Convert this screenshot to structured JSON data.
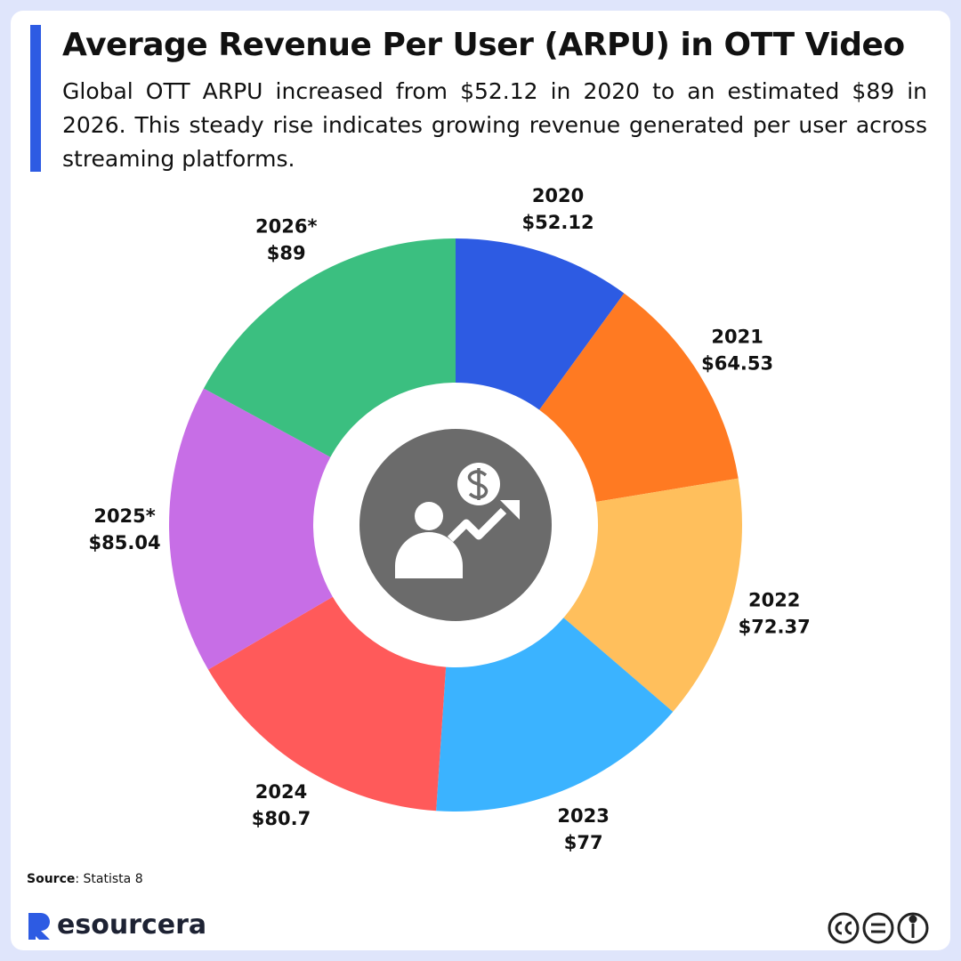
{
  "chart_data": {
    "type": "donut",
    "title": "Average Revenue Per User (ARPU) in OTT Video",
    "subtitle": "Global OTT ARPU increased from $52.12 in 2020 to an estimated $89 in 2026. This steady rise indicates growing revenue generated per user across streaming platforms.",
    "categories": [
      "2020",
      "2021",
      "2022",
      "2023",
      "2024",
      "2025*",
      "2026*"
    ],
    "values": [
      52.12,
      64.53,
      72.37,
      77,
      80.7,
      85.04,
      89
    ],
    "value_labels": [
      "$52.12",
      "$64.53",
      "$72.37",
      "$77",
      "$80.7",
      "$85.04",
      "$89"
    ],
    "colors": [
      "#2d5be3",
      "#ff7a22",
      "#ffbf5c",
      "#3bb3ff",
      "#ff5a5a",
      "#c76ee6",
      "#3bbf80"
    ]
  },
  "source": {
    "label": "Source",
    "text": ": Statista 8"
  },
  "brand": "esourcera"
}
